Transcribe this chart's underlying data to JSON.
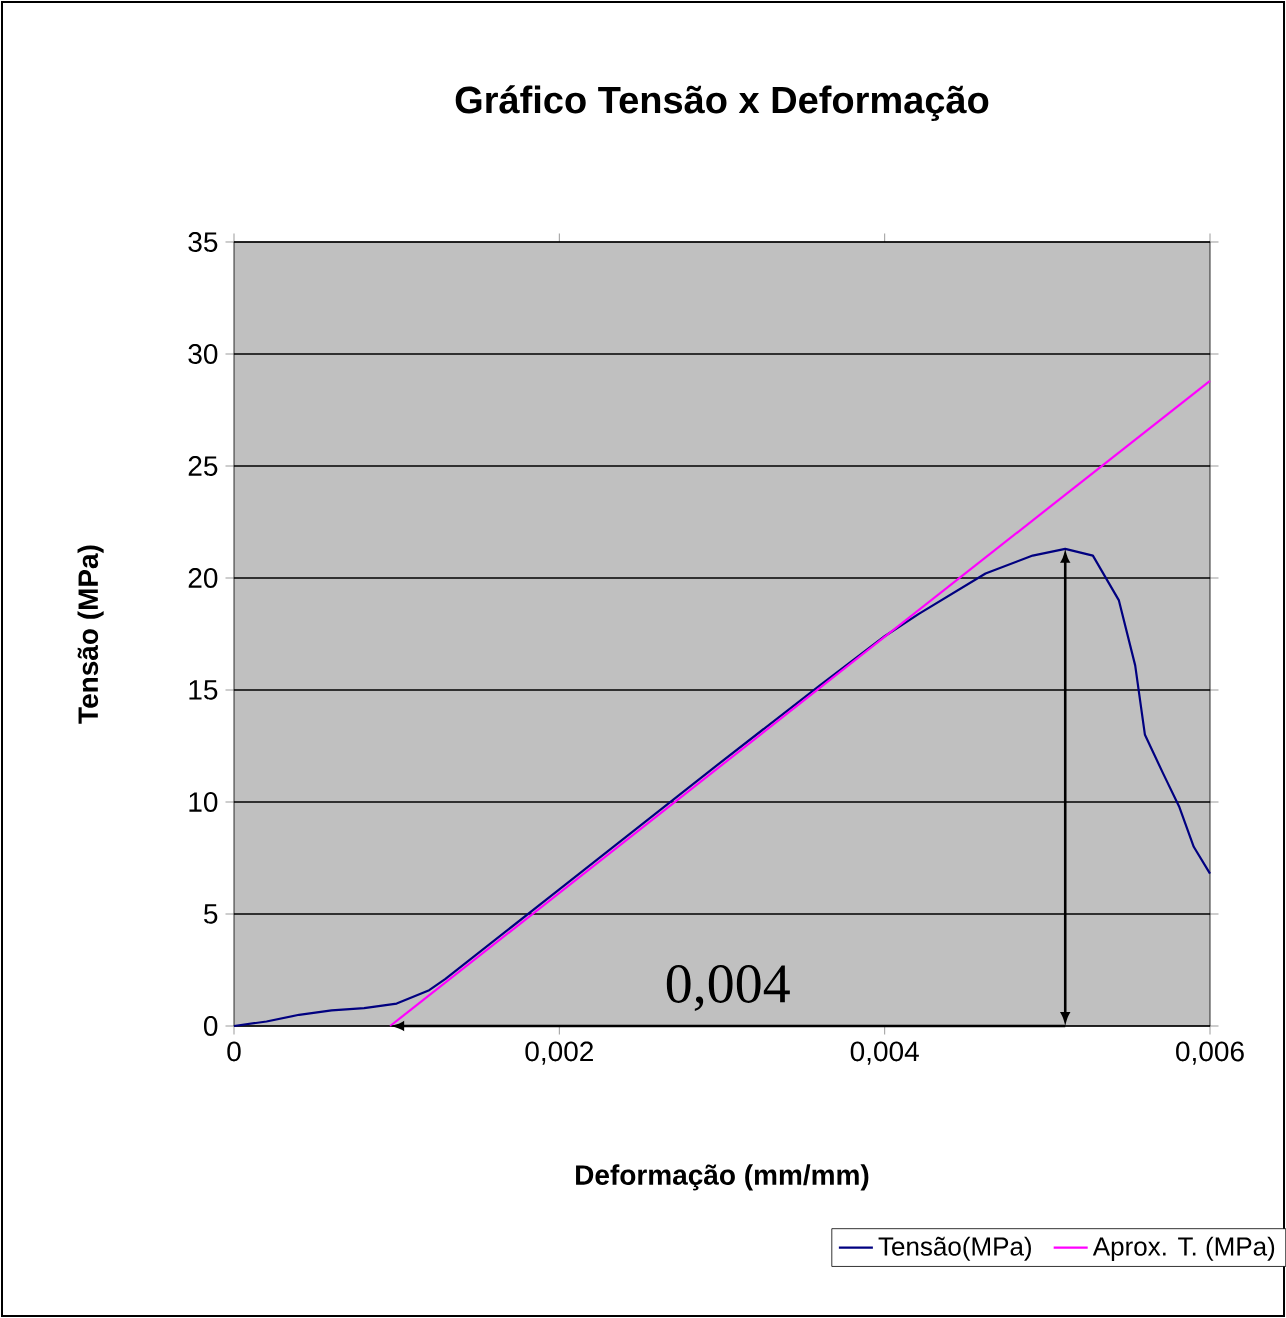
{
  "chart_data": {
    "type": "line",
    "title": "Gráfico Tensão x Deformação",
    "xlabel": "Deformação (mm/mm)",
    "ylabel": "Tensão (MPa)",
    "series": [
      {
        "name": "Tensão(MPa)",
        "color": "#000080",
        "x": [
          0,
          0.0002,
          0.0004,
          0.0006,
          0.0008,
          0.001,
          0.0012,
          0.0013,
          0.002,
          0.00298,
          0.0036,
          0.004,
          0.00421,
          0.00462,
          0.00491,
          0.00511,
          0.00528,
          0.00544,
          0.00554,
          0.0056,
          0.00571,
          0.00581,
          0.0059,
          0.006
        ],
        "values": [
          0,
          0.2,
          0.5,
          0.7,
          0.8,
          1.0,
          1.6,
          2.1,
          6.1,
          11.7,
          15.2,
          17.4,
          18.4,
          20.2,
          21.0,
          21.3,
          21.0,
          19.0,
          16.1,
          13.0,
          11.3,
          9.8,
          8.0,
          6.8
        ]
      },
      {
        "name": "Aprox. T. (MPa)",
        "color": "#ff00ff",
        "x": [
          0.00096,
          0.006
        ],
        "values": [
          0,
          28.8
        ]
      }
    ],
    "annotations": [
      "0,004"
    ],
    "xlim": [
      0,
      0.006
    ],
    "ylim": [
      0,
      35
    ],
    "xticks": [
      0,
      {
        "value": 0.002,
        "label": "0,002"
      },
      {
        "value": 0.004,
        "label": "0,004"
      },
      {
        "value": 0.006,
        "label": "0,006"
      }
    ],
    "yticks": [
      0,
      5,
      10,
      15,
      20,
      25,
      30,
      35
    ],
    "grid": "y",
    "legend": "bottom right"
  }
}
